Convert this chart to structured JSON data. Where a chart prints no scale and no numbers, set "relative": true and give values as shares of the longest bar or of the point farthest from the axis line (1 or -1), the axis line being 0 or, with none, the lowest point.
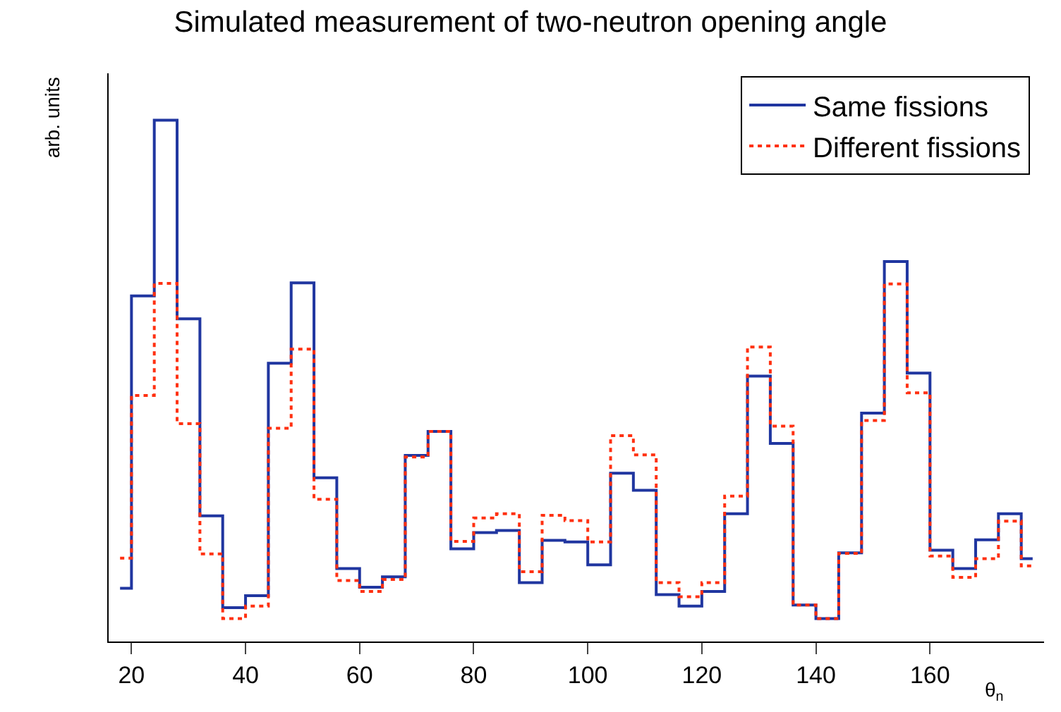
{
  "chart_data": {
    "type": "step",
    "title": "Simulated measurement of two-neutron opening angle",
    "xlabel": "θ$_{n}$",
    "ylabel": "arb. units",
    "relative": true,
    "x": [
      18,
      22,
      26,
      30,
      34,
      38,
      42,
      46,
      50,
      54,
      58,
      62,
      66,
      70,
      74,
      78,
      82,
      86,
      90,
      94,
      98,
      102,
      106,
      110,
      114,
      118,
      122,
      126,
      130,
      134,
      138,
      142,
      146,
      150,
      154,
      158,
      162,
      166,
      170,
      174,
      178
    ],
    "xlim": [
      16,
      180
    ],
    "xticks": [
      20,
      40,
      60,
      80,
      100,
      120,
      140,
      160
    ],
    "series": [
      {
        "name": "Same fissions",
        "color": "#2036a0",
        "line_style": "solid",
        "values": [
          0.102,
          0.663,
          1.0,
          0.619,
          0.241,
          0.065,
          0.088,
          0.534,
          0.688,
          0.314,
          0.14,
          0.104,
          0.124,
          0.357,
          0.403,
          0.178,
          0.209,
          0.213,
          0.113,
          0.194,
          0.191,
          0.147,
          0.323,
          0.29,
          0.09,
          0.068,
          0.096,
          0.245,
          0.509,
          0.38,
          0.07,
          0.044,
          0.17,
          0.438,
          0.729,
          0.515,
          0.175,
          0.14,
          0.195,
          0.245,
          0.159
        ]
      },
      {
        "name": "Different fissions",
        "color": "#ff3010",
        "line_style": "dotted",
        "values": [
          0.16,
          0.472,
          0.687,
          0.418,
          0.168,
          0.044,
          0.068,
          0.409,
          0.561,
          0.273,
          0.117,
          0.096,
          0.119,
          0.354,
          0.403,
          0.192,
          0.237,
          0.245,
          0.134,
          0.242,
          0.232,
          0.191,
          0.395,
          0.358,
          0.113,
          0.086,
          0.113,
          0.279,
          0.565,
          0.413,
          0.07,
          0.044,
          0.169,
          0.424,
          0.686,
          0.477,
          0.164,
          0.123,
          0.159,
          0.231,
          0.145
        ]
      }
    ],
    "legend": "top right"
  }
}
